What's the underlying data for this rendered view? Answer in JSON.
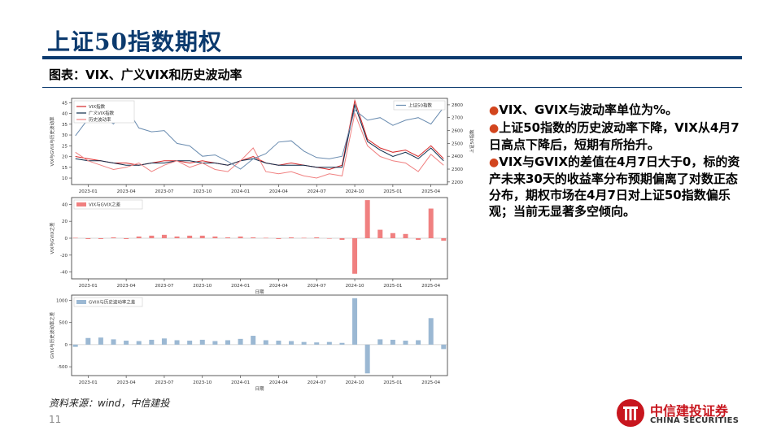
{
  "page": {
    "title": "上证50指数期权",
    "subtitle": "图表：VIX、广义VIX和历史波动率",
    "source": "资料来源：wind，中信建投",
    "page_number": "11"
  },
  "bullets": [
    "VIX、GVIX与波动率单位为%。",
    "上证50指数的历史波动率下降，VIX从4月7日高点下降后，短期有所抬升。",
    "VIX与GVIX的差值在4月7日大于0，标的资产未来30天的收益率分布预期偏离了对数正态分布，期权市场在4月7日对上证50指数偏乐观；当前无显著多空倾向。"
  ],
  "logo": {
    "cn": "中信建投证券",
    "en": "CHINA SECURITIES",
    "color": "#c8161e"
  },
  "colors": {
    "accent": "#0b3a6e",
    "bullet": "#d2451e"
  },
  "chart_data": [
    {
      "type": "line",
      "xlabel": "",
      "ylabel": "VIX与GVIX与历史波动率",
      "y2label": "上证50指数",
      "x_ticks": [
        "2023-01",
        "2023-04",
        "2023-07",
        "2023-10",
        "2024-01",
        "2024-04",
        "2024-07",
        "2024-10",
        "2025-01",
        "2025-04"
      ],
      "x_range": [
        "2022-12",
        "2025-05"
      ],
      "ylim": [
        7,
        47
      ],
      "y_ticks": [
        10,
        15,
        20,
        25,
        30,
        35,
        40,
        45
      ],
      "y2lim": [
        2180,
        2850
      ],
      "y2_ticks": [
        2200,
        2300,
        2400,
        2500,
        2600,
        2700,
        2800
      ],
      "legend_left": [
        "VIX指数",
        "广义VIX指数",
        "历史波动率"
      ],
      "legend_right": [
        "上证50指数"
      ],
      "x": [
        "2022-12",
        "2023-01",
        "2023-02",
        "2023-03",
        "2023-04",
        "2023-05",
        "2023-06",
        "2023-07",
        "2023-08",
        "2023-09",
        "2023-10",
        "2023-11",
        "2023-12",
        "2024-01",
        "2024-02",
        "2024-03",
        "2024-04",
        "2024-05",
        "2024-06",
        "2024-07",
        "2024-08",
        "2024-09",
        "2024-10",
        "2024-11",
        "2024-12",
        "2025-01",
        "2025-02",
        "2025-03",
        "2025-04",
        "2025-05"
      ],
      "series": [
        {
          "name": "VIX指数",
          "axis": "left",
          "color": "#d62728",
          "values": [
            20,
            19,
            18,
            17,
            17,
            16,
            17,
            18,
            18,
            17,
            18,
            17,
            16,
            18,
            20,
            17,
            16,
            17,
            16,
            15,
            14,
            16,
            46,
            28,
            24,
            22,
            23,
            20,
            25,
            19
          ]
        },
        {
          "name": "广义VIX指数",
          "axis": "left",
          "color": "#0d2b4a",
          "values": [
            19,
            18,
            18,
            17,
            16,
            16,
            17,
            17,
            18,
            18,
            17,
            17,
            16,
            18,
            19,
            17,
            16,
            16,
            16,
            15,
            15,
            15,
            44,
            27,
            23,
            20,
            22,
            19,
            24,
            18
          ]
        },
        {
          "name": "历史波动率",
          "axis": "left",
          "color": "#f08080",
          "values": [
            22,
            18,
            16,
            14,
            15,
            17,
            13,
            16,
            18,
            15,
            17,
            14,
            13,
            18,
            24,
            13,
            12,
            13,
            11,
            10,
            12,
            11,
            40,
            25,
            20,
            18,
            17,
            13,
            21,
            16
          ]
        },
        {
          "name": "上证50指数",
          "axis": "right",
          "color": "#6a8cb0",
          "values": [
            2560,
            2690,
            2730,
            2650,
            2780,
            2620,
            2590,
            2600,
            2500,
            2480,
            2400,
            2410,
            2360,
            2300,
            2380,
            2420,
            2510,
            2520,
            2440,
            2390,
            2380,
            2400,
            2760,
            2680,
            2700,
            2640,
            2680,
            2700,
            2650,
            2780
          ]
        }
      ]
    },
    {
      "type": "bar",
      "xlabel": "日期",
      "ylabel": "VIX与GVIX之差",
      "legend": [
        "VIX与GVIX之差"
      ],
      "color": "#f08080",
      "x_ticks": [
        "2023-01",
        "2023-04",
        "2023-07",
        "2023-10",
        "2024-01",
        "2024-04",
        "2024-07",
        "2024-10",
        "2025-01",
        "2025-04"
      ],
      "ylim": [
        -48,
        48
      ],
      "y_ticks": [
        -40,
        -20,
        0,
        20,
        40
      ],
      "x": [
        "2022-12",
        "2023-01",
        "2023-02",
        "2023-03",
        "2023-04",
        "2023-05",
        "2023-06",
        "2023-07",
        "2023-08",
        "2023-09",
        "2023-10",
        "2023-11",
        "2023-12",
        "2024-01",
        "2024-02",
        "2024-03",
        "2024-04",
        "2024-05",
        "2024-06",
        "2024-07",
        "2024-08",
        "2024-09",
        "2024-10",
        "2024-11",
        "2024-12",
        "2025-01",
        "2025-02",
        "2025-03",
        "2025-04",
        "2025-05"
      ],
      "values": [
        0.5,
        -1,
        -1,
        1,
        -1,
        2,
        3,
        4,
        2,
        3,
        3,
        2,
        1,
        2,
        1,
        0.5,
        -1,
        1,
        0.5,
        1,
        -0.5,
        -2,
        -42,
        45,
        10,
        6,
        5,
        -2,
        35,
        -3
      ]
    },
    {
      "type": "bar",
      "xlabel": "日期",
      "ylabel": "GVIX与历史波动率之差",
      "legend": [
        "GVIX与历史波动率之差"
      ],
      "color": "#9bb8d3",
      "x_ticks": [
        "2023-01",
        "2023-04",
        "2023-07",
        "2023-10",
        "2024-01",
        "2024-04",
        "2024-07",
        "2024-10",
        "2025-01",
        "2025-04"
      ],
      "ylim": [
        -700,
        1120
      ],
      "y_ticks": [
        -500,
        0,
        500,
        1000
      ],
      "x": [
        "2022-12",
        "2023-01",
        "2023-02",
        "2023-03",
        "2023-04",
        "2023-05",
        "2023-06",
        "2023-07",
        "2023-08",
        "2023-09",
        "2023-10",
        "2023-11",
        "2023-12",
        "2024-01",
        "2024-02",
        "2024-03",
        "2024-04",
        "2024-05",
        "2024-06",
        "2024-07",
        "2024-08",
        "2024-09",
        "2024-10",
        "2024-11",
        "2024-12",
        "2025-01",
        "2025-02",
        "2025-03",
        "2025-04",
        "2025-05"
      ],
      "values": [
        -50,
        150,
        160,
        120,
        90,
        80,
        110,
        140,
        100,
        90,
        110,
        80,
        100,
        130,
        200,
        100,
        90,
        80,
        60,
        50,
        60,
        40,
        1050,
        -650,
        120,
        110,
        90,
        100,
        600,
        -100
      ]
    }
  ]
}
